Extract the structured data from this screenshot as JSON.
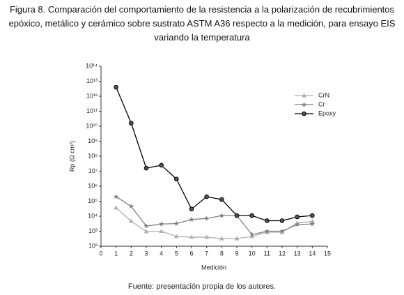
{
  "chart_data": {
    "type": "line",
    "title": "Figura 8. Comparación del comportamiento de la resistencia a la polarización de recubrimientos epóxico, metálico y cerámico sobre sustrato ASTM A36 respecto a la medición, para ensayo EIS variando la temperatura",
    "xlabel": "Medición",
    "ylabel": "Rp (Ω cm²)",
    "source": "Fuente: presentación propia de los autores.",
    "x": [
      1,
      2,
      3,
      4,
      5,
      6,
      7,
      8,
      9,
      10,
      11,
      12,
      13,
      14
    ],
    "series": [
      {
        "name": "CrN",
        "color": "#b0b0b0",
        "marker": "triangle",
        "values": [
          36000,
          4700,
          950,
          1000,
          450,
          400,
          400,
          320,
          320,
          450,
          850,
          850,
          3500,
          4500
        ]
      },
      {
        "name": "Cr",
        "color": "#808080",
        "marker": "star",
        "values": [
          200000,
          45000,
          2200,
          3000,
          3200,
          6000,
          7000,
          11000,
          11000,
          600,
          1000,
          1000,
          2800,
          3000
        ]
      },
      {
        "name": "Epoxy",
        "color": "#000000",
        "marker": "circle",
        "values": [
          4000000000000,
          16000000000,
          16000000,
          25000000,
          3000000,
          30000,
          200000,
          130000,
          11000,
          11000,
          5000,
          5000,
          9000,
          11000
        ]
      }
    ],
    "xlim": [
      0,
      15
    ],
    "xticks": [
      0,
      1,
      2,
      3,
      4,
      5,
      6,
      7,
      8,
      9,
      10,
      11,
      12,
      13,
      14,
      15
    ],
    "ylim": [
      100,
      100000000000000.0
    ],
    "log_y": true,
    "yticks": [
      {
        "value": 100,
        "label": "10²"
      },
      {
        "value": 1000,
        "label": "10³"
      },
      {
        "value": 10000,
        "label": "10⁴"
      },
      {
        "value": 100000,
        "label": "10⁵"
      },
      {
        "value": 1000000,
        "label": "10⁶"
      },
      {
        "value": 10000000,
        "label": "10⁷"
      },
      {
        "value": 100000000,
        "label": "10⁸"
      },
      {
        "value": 1000000000,
        "label": "10⁹"
      },
      {
        "value": 10000000000,
        "label": "10¹⁰"
      },
      {
        "value": 100000000000,
        "label": "10¹¹"
      },
      {
        "value": 1000000000000,
        "label": "10¹²"
      },
      {
        "value": 10000000000000,
        "label": "10¹³"
      },
      {
        "value": 100000000000000,
        "label": "10¹⁴"
      }
    ],
    "grid": false,
    "legend": "upper right"
  }
}
